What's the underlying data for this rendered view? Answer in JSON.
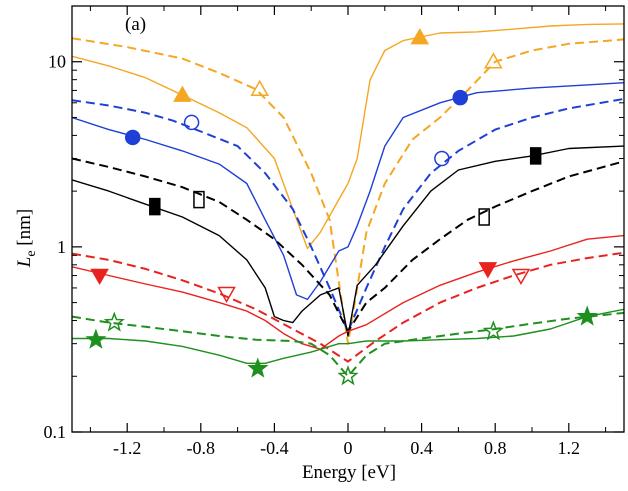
{
  "chart_data": {
    "type": "line",
    "panel_label": "(a)",
    "xlabel": "Energy [eV]",
    "ylabel": "L",
    "ylabel_subscript": "e",
    "ylabel_unit": " [nm]",
    "xlim": [
      -1.5,
      1.5
    ],
    "ylim": [
      0.1,
      20
    ],
    "y_scale": "log",
    "grid": false,
    "x_ticks": [
      {
        "value": -1.2,
        "label": "-1.2"
      },
      {
        "value": -0.8,
        "label": "-0.8"
      },
      {
        "value": -0.4,
        "label": "-0.4"
      },
      {
        "value": 0,
        "label": "0"
      },
      {
        "value": 0.4,
        "label": "0.4"
      },
      {
        "value": 0.8,
        "label": "0.8"
      },
      {
        "value": 1.2,
        "label": "1.2"
      }
    ],
    "y_ticks": [
      {
        "value": 0.1,
        "label": "0.1"
      },
      {
        "value": 1,
        "label": "1"
      },
      {
        "value": 10,
        "label": "10"
      }
    ],
    "series": [
      {
        "color": "#f5a623",
        "dash": false,
        "marker": "triangle-up",
        "filled": true,
        "points": [
          [
            -1.5,
            10.7
          ],
          [
            -1.3,
            9.5
          ],
          [
            -1.1,
            8.2
          ],
          [
            -0.9,
            6.6
          ],
          [
            -0.7,
            5.3
          ],
          [
            -0.55,
            4.4
          ],
          [
            -0.4,
            3.0
          ],
          [
            -0.3,
            1.6
          ],
          [
            -0.22,
            0.98
          ],
          [
            -0.15,
            1.2
          ],
          [
            -0.05,
            1.8
          ],
          [
            0,
            2.2
          ],
          [
            0.05,
            3.0
          ],
          [
            0.12,
            8.0
          ],
          [
            0.2,
            11.5
          ],
          [
            0.3,
            13.0
          ],
          [
            0.5,
            14.3
          ],
          [
            0.7,
            14.5
          ],
          [
            0.9,
            15.0
          ],
          [
            1.1,
            15.6
          ],
          [
            1.3,
            15.9
          ],
          [
            1.5,
            16.0
          ]
        ],
        "markers": [
          [
            -0.9,
            6.6
          ],
          [
            0.39,
            13.5
          ]
        ]
      },
      {
        "color": "#f5a623",
        "dash": true,
        "marker": "triangle-up",
        "filled": false,
        "points": [
          [
            -1.5,
            13.4
          ],
          [
            -1.2,
            12.0
          ],
          [
            -0.9,
            10.4
          ],
          [
            -0.7,
            8.7
          ],
          [
            -0.5,
            7.1
          ],
          [
            -0.35,
            5.0
          ],
          [
            -0.2,
            2.5
          ],
          [
            -0.1,
            1.4
          ],
          [
            0,
            0.3
          ],
          [
            0.1,
            1.2
          ],
          [
            0.2,
            2.2
          ],
          [
            0.35,
            3.8
          ],
          [
            0.5,
            5.0
          ],
          [
            0.65,
            7.0
          ],
          [
            0.8,
            10.0
          ],
          [
            1.0,
            11.5
          ],
          [
            1.2,
            12.5
          ],
          [
            1.5,
            13.2
          ]
        ],
        "markers": [
          [
            -0.48,
            7.1
          ],
          [
            0.79,
            10.0
          ]
        ]
      },
      {
        "color": "#1f3fd6",
        "dash": false,
        "marker": "circle",
        "filled": true,
        "points": [
          [
            -1.5,
            5.0
          ],
          [
            -1.3,
            4.3
          ],
          [
            -1.1,
            3.8
          ],
          [
            -0.9,
            3.3
          ],
          [
            -0.7,
            2.8
          ],
          [
            -0.55,
            2.2
          ],
          [
            -0.45,
            1.4
          ],
          [
            -0.35,
            0.9
          ],
          [
            -0.28,
            0.55
          ],
          [
            -0.22,
            0.52
          ],
          [
            -0.15,
            0.65
          ],
          [
            -0.05,
            0.95
          ],
          [
            0,
            1.0
          ],
          [
            0.05,
            1.3
          ],
          [
            0.12,
            2.0
          ],
          [
            0.2,
            3.5
          ],
          [
            0.3,
            5.0
          ],
          [
            0.5,
            6.0
          ],
          [
            0.7,
            6.8
          ],
          [
            1.0,
            7.2
          ],
          [
            1.3,
            7.5
          ],
          [
            1.5,
            7.7
          ]
        ],
        "markers": [
          [
            -1.17,
            3.9
          ],
          [
            0.61,
            6.4
          ]
        ]
      },
      {
        "color": "#1f3fd6",
        "dash": true,
        "marker": "circle",
        "filled": false,
        "points": [
          [
            -1.5,
            6.2
          ],
          [
            -1.3,
            5.8
          ],
          [
            -1.1,
            5.3
          ],
          [
            -0.95,
            4.8
          ],
          [
            -0.8,
            4.2
          ],
          [
            -0.6,
            3.5
          ],
          [
            -0.45,
            2.5
          ],
          [
            -0.3,
            1.6
          ],
          [
            -0.2,
            1.0
          ],
          [
            -0.1,
            0.6
          ],
          [
            0,
            0.35
          ],
          [
            0.1,
            0.6
          ],
          [
            0.2,
            1.0
          ],
          [
            0.3,
            1.6
          ],
          [
            0.45,
            2.5
          ],
          [
            0.6,
            3.3
          ],
          [
            0.8,
            4.3
          ],
          [
            1.0,
            5.0
          ],
          [
            1.2,
            5.6
          ],
          [
            1.5,
            6.3
          ]
        ],
        "markers": [
          [
            -0.85,
            4.7
          ],
          [
            0.51,
            3.0
          ]
        ]
      },
      {
        "color": "#000000",
        "dash": false,
        "marker": "rect-tall",
        "filled": true,
        "points": [
          [
            -1.5,
            2.3
          ],
          [
            -1.3,
            2.0
          ],
          [
            -1.1,
            1.7
          ],
          [
            -0.9,
            1.45
          ],
          [
            -0.7,
            1.15
          ],
          [
            -0.55,
            0.85
          ],
          [
            -0.45,
            0.6
          ],
          [
            -0.4,
            0.42
          ],
          [
            -0.35,
            0.4
          ],
          [
            -0.3,
            0.39
          ],
          [
            -0.25,
            0.45
          ],
          [
            -0.15,
            0.55
          ],
          [
            -0.05,
            0.6
          ],
          [
            0,
            0.33
          ],
          [
            0.05,
            0.62
          ],
          [
            0.15,
            0.8
          ],
          [
            0.3,
            1.3
          ],
          [
            0.45,
            2.0
          ],
          [
            0.6,
            2.6
          ],
          [
            0.8,
            2.9
          ],
          [
            1.0,
            3.1
          ],
          [
            1.2,
            3.4
          ],
          [
            1.5,
            3.5
          ]
        ],
        "markers": [
          [
            -1.05,
            1.65
          ],
          [
            1.02,
            3.1
          ]
        ]
      },
      {
        "color": "#000000",
        "dash": true,
        "marker": "rect-tall",
        "filled": false,
        "points": [
          [
            -1.5,
            3.0
          ],
          [
            -1.3,
            2.7
          ],
          [
            -1.1,
            2.4
          ],
          [
            -0.9,
            2.1
          ],
          [
            -0.7,
            1.75
          ],
          [
            -0.55,
            1.4
          ],
          [
            -0.4,
            1.1
          ],
          [
            -0.25,
            0.8
          ],
          [
            -0.1,
            0.55
          ],
          [
            0,
            0.35
          ],
          [
            0.1,
            0.5
          ],
          [
            0.2,
            0.6
          ],
          [
            0.35,
            0.85
          ],
          [
            0.5,
            1.1
          ],
          [
            0.65,
            1.4
          ],
          [
            0.8,
            1.65
          ],
          [
            1.0,
            2.0
          ],
          [
            1.2,
            2.4
          ],
          [
            1.5,
            2.9
          ]
        ],
        "markers": [
          [
            -0.81,
            1.8
          ],
          [
            0.74,
            1.45
          ]
        ]
      },
      {
        "color": "#e8231f",
        "dash": false,
        "marker": "triangle-down",
        "filled": true,
        "points": [
          [
            -1.5,
            0.78
          ],
          [
            -1.3,
            0.7
          ],
          [
            -1.1,
            0.63
          ],
          [
            -0.9,
            0.57
          ],
          [
            -0.7,
            0.5
          ],
          [
            -0.55,
            0.45
          ],
          [
            -0.45,
            0.4
          ],
          [
            -0.35,
            0.34
          ],
          [
            -0.25,
            0.3
          ],
          [
            -0.15,
            0.28
          ],
          [
            -0.05,
            0.33
          ],
          [
            0,
            0.35
          ],
          [
            0.1,
            0.38
          ],
          [
            0.3,
            0.5
          ],
          [
            0.5,
            0.62
          ],
          [
            0.7,
            0.73
          ],
          [
            0.9,
            0.84
          ],
          [
            1.1,
            0.95
          ],
          [
            1.3,
            1.1
          ],
          [
            1.5,
            1.15
          ]
        ],
        "markers": [
          [
            -1.35,
            0.7
          ],
          [
            0.76,
            0.76
          ]
        ]
      },
      {
        "color": "#e8231f",
        "dash": true,
        "marker": "triangle-down",
        "filled": false,
        "points": [
          [
            -1.5,
            0.92
          ],
          [
            -1.3,
            0.85
          ],
          [
            -1.1,
            0.76
          ],
          [
            -0.9,
            0.66
          ],
          [
            -0.7,
            0.56
          ],
          [
            -0.5,
            0.46
          ],
          [
            -0.3,
            0.36
          ],
          [
            -0.15,
            0.3
          ],
          [
            0,
            0.24
          ],
          [
            0.15,
            0.31
          ],
          [
            0.3,
            0.39
          ],
          [
            0.5,
            0.5
          ],
          [
            0.7,
            0.6
          ],
          [
            0.9,
            0.7
          ],
          [
            1.1,
            0.8
          ],
          [
            1.3,
            0.87
          ],
          [
            1.5,
            0.93
          ]
        ],
        "markers": [
          [
            -0.66,
            0.56
          ],
          [
            0.94,
            0.7
          ]
        ]
      },
      {
        "color": "#1f8f1f",
        "dash": false,
        "marker": "star",
        "filled": true,
        "points": [
          [
            -1.5,
            0.32
          ],
          [
            -1.3,
            0.32
          ],
          [
            -1.1,
            0.31
          ],
          [
            -0.9,
            0.29
          ],
          [
            -0.7,
            0.26
          ],
          [
            -0.55,
            0.235
          ],
          [
            -0.45,
            0.235
          ],
          [
            -0.35,
            0.25
          ],
          [
            -0.2,
            0.27
          ],
          [
            -0.05,
            0.3
          ],
          [
            0,
            0.3
          ],
          [
            0.1,
            0.31
          ],
          [
            0.3,
            0.31
          ],
          [
            0.5,
            0.315
          ],
          [
            0.7,
            0.32
          ],
          [
            0.9,
            0.33
          ],
          [
            1.1,
            0.36
          ],
          [
            1.3,
            0.42
          ],
          [
            1.5,
            0.46
          ]
        ],
        "markers": [
          [
            -1.37,
            0.315
          ],
          [
            -0.49,
            0.22
          ],
          [
            1.3,
            0.42
          ]
        ]
      },
      {
        "color": "#1f8f1f",
        "dash": true,
        "marker": "star",
        "filled": false,
        "points": [
          [
            -1.5,
            0.42
          ],
          [
            -1.3,
            0.39
          ],
          [
            -1.1,
            0.37
          ],
          [
            -0.9,
            0.35
          ],
          [
            -0.7,
            0.33
          ],
          [
            -0.5,
            0.315
          ],
          [
            -0.3,
            0.31
          ],
          [
            -0.2,
            0.3
          ],
          [
            -0.1,
            0.26
          ],
          [
            0,
            0.2
          ],
          [
            0.1,
            0.26
          ],
          [
            0.2,
            0.3
          ],
          [
            0.4,
            0.32
          ],
          [
            0.6,
            0.34
          ],
          [
            0.8,
            0.36
          ],
          [
            1.0,
            0.385
          ],
          [
            1.2,
            0.41
          ],
          [
            1.5,
            0.44
          ]
        ],
        "markers": [
          [
            -1.27,
            0.39
          ],
          [
            0.0,
            0.2
          ],
          [
            0.79,
            0.35
          ]
        ]
      }
    ]
  }
}
